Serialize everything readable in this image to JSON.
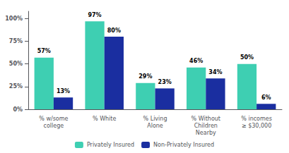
{
  "chart_data": {
    "type": "bar",
    "categories": [
      "% w/some\ncollege",
      "% White",
      "% Living\nAlone",
      "% Without\nChildren\nNearby",
      "% incomes\n≥ $30,000"
    ],
    "series": [
      {
        "name": "Privately Insured",
        "color": "#3ECFB2",
        "values": [
          57,
          97,
          29,
          46,
          50
        ],
        "value_labels": [
          "57%",
          "97%",
          "29%",
          "46%",
          "50%"
        ]
      },
      {
        "name": "Non-Privately Insured",
        "color": "#1A2EA0",
        "values": [
          13,
          80,
          23,
          34,
          6
        ],
        "value_labels": [
          "13%",
          "80%",
          "23%",
          "34%",
          "6%"
        ]
      }
    ],
    "ylim": [
      0,
      108
    ],
    "yticks": [
      {
        "value": 0,
        "label": "0%"
      },
      {
        "value": 25,
        "label": "25%"
      },
      {
        "value": 50,
        "label": "50%"
      },
      {
        "value": 75,
        "label": "75%"
      },
      {
        "value": 100,
        "label": "100%"
      }
    ],
    "grid": false,
    "legend": "bottom",
    "data_labels": true
  }
}
